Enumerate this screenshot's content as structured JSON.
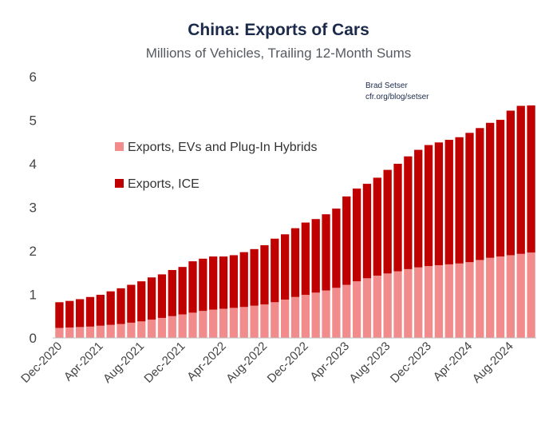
{
  "chart_data": {
    "type": "bar",
    "stacked": true,
    "title": "China: Exports of Cars",
    "subtitle": "Millions of Vehicles, Trailing 12-Month Sums",
    "xlabel": "",
    "ylabel": "",
    "ylim": [
      0,
      6
    ],
    "yticks": [
      "0",
      "1",
      "2",
      "3",
      "4",
      "5",
      "6"
    ],
    "grid": false,
    "legend_position": "left",
    "annotation": [
      "Brad Setser",
      "cfr.org/blog/setser"
    ],
    "x_tick_labels": [
      "Dec-2020",
      "Apr-2021",
      "Aug-2021",
      "Dec-2021",
      "Apr-2022",
      "Aug-2022",
      "Dec-2022",
      "Apr-2023",
      "Aug-2023",
      "Dec-2023",
      "Apr-2024",
      "Aug-2024"
    ],
    "categories": [
      "Dec-2020",
      "Jan-2021",
      "Feb-2021",
      "Mar-2021",
      "Apr-2021",
      "May-2021",
      "Jun-2021",
      "Jul-2021",
      "Aug-2021",
      "Sep-2021",
      "Oct-2021",
      "Nov-2021",
      "Dec-2021",
      "Jan-2022",
      "Feb-2022",
      "Mar-2022",
      "Apr-2022",
      "May-2022",
      "Jun-2022",
      "Jul-2022",
      "Aug-2022",
      "Sep-2022",
      "Oct-2022",
      "Nov-2022",
      "Dec-2022",
      "Jan-2023",
      "Feb-2023",
      "Mar-2023",
      "Apr-2023",
      "May-2023",
      "Jun-2023",
      "Jul-2023",
      "Aug-2023",
      "Sep-2023",
      "Oct-2023",
      "Nov-2023",
      "Dec-2023",
      "Jan-2024",
      "Feb-2024",
      "Mar-2024",
      "Apr-2024",
      "May-2024",
      "Jun-2024",
      "Jul-2024",
      "Aug-2024",
      "Sep-2024",
      "Oct-2024"
    ],
    "series": [
      {
        "name": "Exports, EVs and Plug-In Hybrids",
        "color": "#f28b8b",
        "values": [
          0.23,
          0.24,
          0.25,
          0.26,
          0.28,
          0.3,
          0.32,
          0.35,
          0.38,
          0.42,
          0.46,
          0.5,
          0.54,
          0.58,
          0.62,
          0.65,
          0.67,
          0.69,
          0.71,
          0.74,
          0.77,
          0.82,
          0.88,
          0.94,
          0.99,
          1.04,
          1.09,
          1.15,
          1.22,
          1.3,
          1.37,
          1.43,
          1.48,
          1.53,
          1.58,
          1.62,
          1.65,
          1.67,
          1.69,
          1.71,
          1.74,
          1.79,
          1.84,
          1.87,
          1.9,
          1.93,
          1.96
        ]
      },
      {
        "name": "Exports, ICE",
        "color": "#c00000",
        "values": [
          0.59,
          0.61,
          0.64,
          0.68,
          0.71,
          0.77,
          0.82,
          0.87,
          0.92,
          0.97,
          1.0,
          1.06,
          1.09,
          1.18,
          1.2,
          1.22,
          1.2,
          1.21,
          1.26,
          1.3,
          1.36,
          1.46,
          1.5,
          1.58,
          1.66,
          1.69,
          1.75,
          1.82,
          2.03,
          2.13,
          2.17,
          2.25,
          2.38,
          2.47,
          2.59,
          2.7,
          2.78,
          2.82,
          2.86,
          2.9,
          2.97,
          3.03,
          3.1,
          3.14,
          3.32,
          3.4,
          3.38
        ]
      }
    ]
  }
}
